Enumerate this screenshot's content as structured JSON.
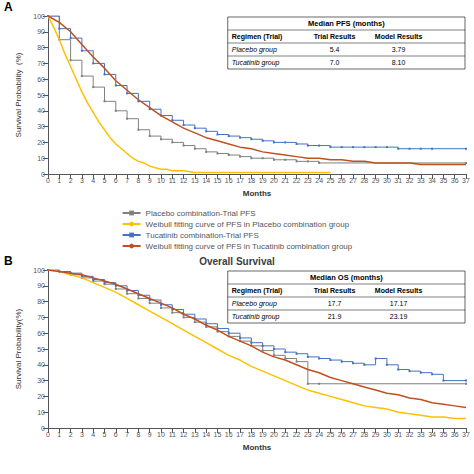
{
  "chart_data": [
    {
      "type": "line",
      "annotations": [
        "A"
      ],
      "xlabel": "Months",
      "ylabel": "Survival Probability  (%)",
      "xlim": [
        0,
        37
      ],
      "ylim": [
        0,
        100
      ],
      "xticks": [
        0,
        1,
        2,
        3,
        4,
        5,
        6,
        7,
        8,
        9,
        10,
        11,
        12,
        13,
        14,
        15,
        16,
        17,
        18,
        19,
        20,
        21,
        22,
        23,
        24,
        25,
        26,
        27,
        28,
        29,
        30,
        31,
        32,
        33,
        34,
        35,
        36,
        37
      ],
      "yticks": [
        0,
        10,
        20,
        30,
        40,
        50,
        60,
        70,
        80,
        90,
        100
      ],
      "grid": false,
      "legend": "bottom",
      "table": {
        "title": "Median PFS (months)",
        "columns": [
          "Regimen (Trial)",
          "Trial Results",
          "Model Results"
        ],
        "rows": [
          [
            "Placebo group",
            "5.4",
            "3.79"
          ],
          [
            "Tucatinib group",
            "7.0",
            "8.10"
          ]
        ]
      },
      "series": [
        {
          "name": "Placebo combination-Trial PFS",
          "color": "#808080",
          "line_style": "step",
          "marker": "square",
          "x": [
            0,
            1,
            2,
            3,
            4,
            5,
            6,
            7,
            8,
            9,
            10,
            11,
            12,
            13,
            14,
            15,
            16,
            17,
            18,
            19,
            20,
            21,
            22,
            23,
            24,
            37
          ],
          "values": [
            100,
            85,
            72,
            62,
            55,
            46,
            40,
            35,
            28,
            24,
            22,
            20,
            18,
            16,
            14,
            13,
            12,
            11,
            10,
            10,
            9,
            9,
            8,
            8,
            7,
            7
          ]
        },
        {
          "name": "Weibull fitting curve of PFS in Placebo combination group",
          "color": "#FFC000",
          "line_style": "solid",
          "x": [
            0,
            0.5,
            1,
            1.5,
            2,
            2.5,
            3,
            3.5,
            4,
            4.5,
            5,
            5.5,
            6,
            6.5,
            7,
            7.5,
            8,
            8.5,
            9,
            9.5,
            10,
            10.5,
            11,
            11.5,
            12,
            13,
            14,
            15,
            16,
            17,
            18,
            19,
            20,
            21,
            22,
            23,
            24,
            25
          ],
          "values": [
            100,
            93,
            85,
            76,
            68,
            60,
            52,
            45,
            39,
            33,
            28,
            23,
            19,
            16,
            13,
            10,
            8,
            7,
            5,
            4,
            3,
            3,
            2,
            2,
            2,
            1,
            1,
            1,
            1,
            1,
            1,
            1,
            1,
            1,
            1,
            1,
            1,
            1
          ]
        },
        {
          "name": "Tucatinib combination-Trial PFS",
          "color": "#4472C4",
          "line_style": "step",
          "marker": "square",
          "x": [
            0,
            1,
            2,
            3,
            4,
            5,
            6,
            7,
            8,
            9,
            10,
            11,
            12,
            13,
            14,
            15,
            16,
            17,
            18,
            19,
            20,
            21,
            22,
            23,
            24,
            25,
            26,
            27,
            28,
            29,
            30,
            31,
            32,
            33,
            34,
            37
          ],
          "values": [
            100,
            92,
            86,
            78,
            70,
            63,
            56,
            51,
            46,
            41,
            37,
            34,
            31,
            29,
            27,
            25,
            24,
            23,
            22,
            21,
            20,
            20,
            19,
            18,
            18,
            17,
            17,
            17,
            17,
            17,
            17,
            16,
            16,
            16,
            16,
            16
          ]
        },
        {
          "name": "Weibull fitting curve of PFS in Tucatinib combination group",
          "color": "#C05020",
          "line_style": "solid",
          "x": [
            0,
            1,
            2,
            3,
            4,
            5,
            6,
            7,
            8,
            9,
            10,
            11,
            12,
            13,
            14,
            15,
            16,
            17,
            18,
            19,
            20,
            21,
            22,
            23,
            24,
            25,
            26,
            27,
            28,
            29,
            30,
            31,
            32,
            33,
            34,
            35,
            36,
            37
          ],
          "values": [
            100,
            96,
            90,
            82,
            74,
            67,
            59,
            53,
            47,
            42,
            37,
            33,
            29,
            26,
            23,
            21,
            19,
            17,
            16,
            14,
            13,
            12,
            11,
            10,
            10,
            9,
            9,
            8,
            8,
            7,
            7,
            7,
            7,
            6,
            6,
            6,
            6,
            6
          ]
        }
      ]
    },
    {
      "type": "line",
      "title": "Overall Survival",
      "annotations": [
        "B"
      ],
      "xlabel": "Months",
      "ylabel": "Survival Probability(%)",
      "xlim": [
        0,
        37
      ],
      "ylim": [
        0,
        100
      ],
      "xticks": [
        0,
        1,
        2,
        3,
        4,
        5,
        6,
        7,
        8,
        9,
        10,
        11,
        12,
        13,
        14,
        15,
        16,
        17,
        18,
        19,
        20,
        21,
        22,
        23,
        24,
        25,
        26,
        27,
        28,
        29,
        30,
        31,
        32,
        33,
        34,
        35,
        36,
        37
      ],
      "yticks": [
        0,
        10,
        20,
        30,
        40,
        50,
        60,
        70,
        80,
        90,
        100
      ],
      "grid": false,
      "table": {
        "title": "Median OS (months)",
        "columns": [
          "Regimen (Trial)",
          "Trial Results",
          "Model Results"
        ],
        "rows": [
          [
            "Placebo group",
            "17.7",
            "17.17"
          ],
          [
            "Tucatinib group",
            "21.9",
            "23.19"
          ]
        ]
      },
      "series": [
        {
          "name": "Placebo combination-Trial PFS",
          "color": "#808080",
          "line_style": "step",
          "marker": "square",
          "x": [
            0,
            1,
            2,
            3,
            4,
            5,
            6,
            7,
            8,
            9,
            10,
            11,
            12,
            13,
            14,
            15,
            16,
            17,
            18,
            19,
            20,
            21,
            22,
            23,
            24,
            37
          ],
          "values": [
            100,
            99,
            97,
            95,
            93,
            91,
            88,
            85,
            82,
            79,
            76,
            73,
            70,
            67,
            64,
            61,
            58,
            55,
            52,
            49,
            46,
            44,
            42,
            28,
            28,
            28
          ]
        },
        {
          "name": "Weibull fitting curve of PFS in Placebo combination group",
          "color": "#FFC000",
          "line_style": "solid",
          "x": [
            0,
            1,
            2,
            3,
            4,
            5,
            6,
            7,
            8,
            9,
            10,
            11,
            12,
            13,
            14,
            15,
            16,
            17,
            18,
            19,
            20,
            21,
            22,
            23,
            24,
            25,
            26,
            27,
            28,
            29,
            30,
            31,
            32,
            33,
            34,
            35,
            36,
            37
          ],
          "values": [
            100,
            99,
            97,
            95,
            92,
            89,
            86,
            82,
            78,
            74,
            70,
            66,
            62,
            58,
            54,
            50,
            46,
            43,
            39,
            36,
            33,
            30,
            27,
            24,
            22,
            20,
            18,
            16,
            14,
            13,
            12,
            10,
            9,
            8,
            7,
            7,
            6,
            6
          ]
        },
        {
          "name": "Tucatinib combination-Trial PFS",
          "color": "#4472C4",
          "line_style": "step",
          "marker": "square",
          "x": [
            0,
            1,
            2,
            3,
            4,
            5,
            6,
            7,
            8,
            9,
            10,
            11,
            12,
            13,
            14,
            15,
            16,
            17,
            18,
            19,
            20,
            21,
            22,
            23,
            24,
            25,
            26,
            27,
            28,
            29,
            30,
            31,
            32,
            33,
            34,
            35,
            37
          ],
          "values": [
            100,
            99,
            98,
            96,
            94,
            92,
            90,
            87,
            84,
            81,
            78,
            75,
            72,
            69,
            66,
            63,
            60,
            57,
            54,
            52,
            50,
            48,
            47,
            45,
            44,
            43,
            42,
            41,
            40,
            44,
            40,
            37,
            36,
            35,
            34,
            30,
            30
          ]
        },
        {
          "name": "Weibull fitting curve of PFS in Tucatinib combination group",
          "color": "#C05020",
          "line_style": "solid",
          "x": [
            0,
            1,
            2,
            3,
            4,
            5,
            6,
            7,
            8,
            9,
            10,
            11,
            12,
            13,
            14,
            15,
            16,
            17,
            18,
            19,
            20,
            21,
            22,
            23,
            24,
            25,
            26,
            27,
            28,
            29,
            30,
            31,
            32,
            33,
            34,
            35,
            36,
            37
          ],
          "values": [
            100,
            99,
            98,
            97,
            95,
            93,
            91,
            88,
            85,
            82,
            79,
            76,
            72,
            69,
            65,
            62,
            58,
            55,
            52,
            48,
            45,
            43,
            40,
            37,
            35,
            32,
            30,
            28,
            26,
            24,
            22,
            21,
            19,
            18,
            16,
            15,
            14,
            13
          ]
        }
      ]
    }
  ]
}
